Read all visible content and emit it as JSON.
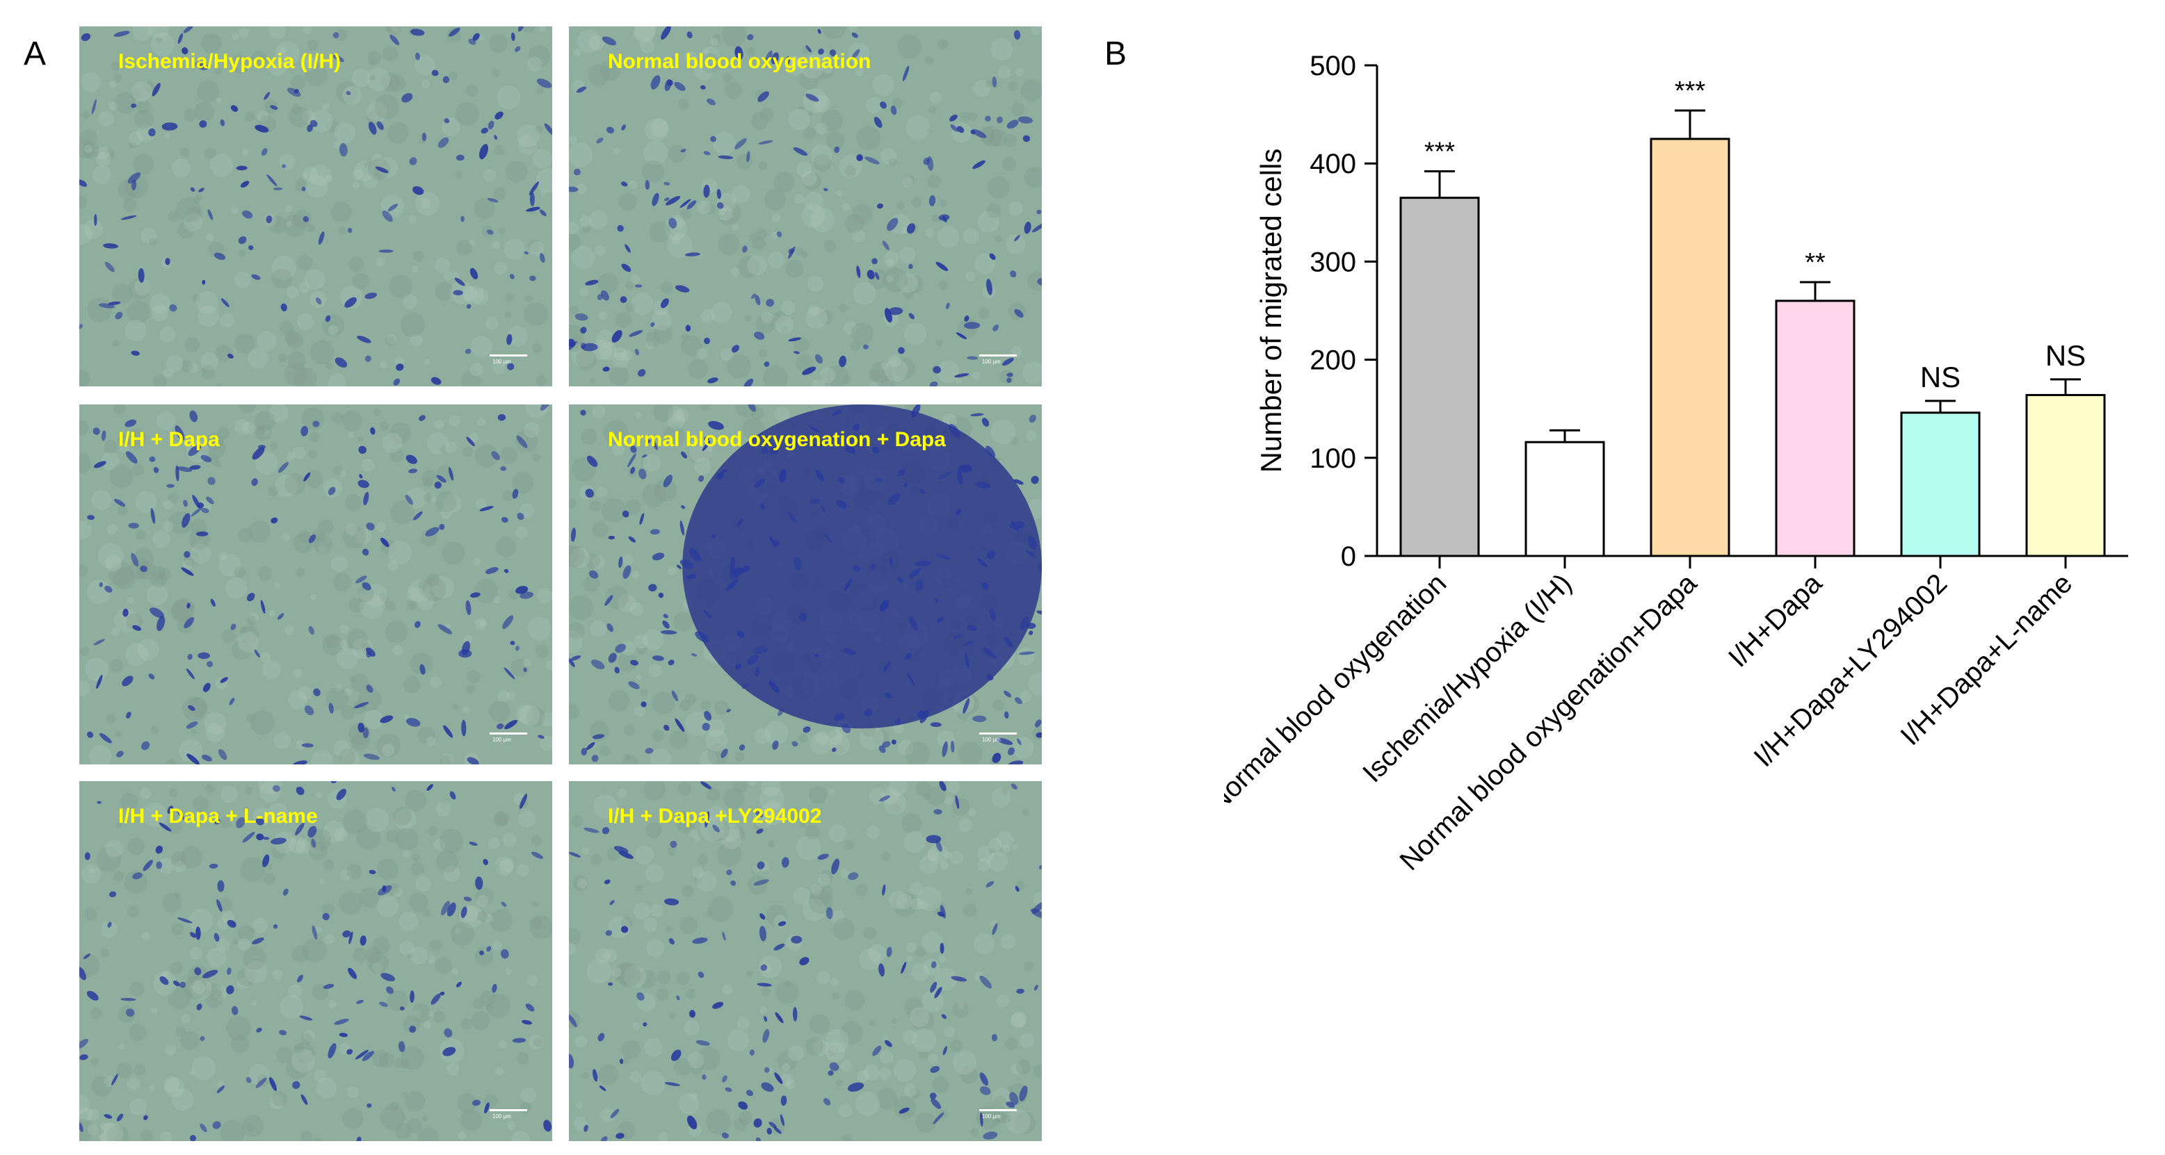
{
  "panels": {
    "a_letter": "A",
    "b_letter": "B"
  },
  "micrographs": [
    {
      "label": "Ischemia/Hypoxia (I/H)",
      "scale": "100 μm",
      "density": 0.28,
      "dark_center": false
    },
    {
      "label": "Normal blood oxygenation",
      "scale": "100 μm",
      "density": 0.42,
      "dark_center": false
    },
    {
      "label": "I/H + Dapa",
      "scale": "100 μm",
      "density": 0.38,
      "dark_center": false
    },
    {
      "label": "Normal blood oxygenation + Dapa",
      "scale": "100 μm",
      "density": 0.62,
      "dark_center": true
    },
    {
      "label": "I/H + Dapa + L-name",
      "scale": "100 μm",
      "density": 0.3,
      "dark_center": false
    },
    {
      "label": "I/H + Dapa +LY294002",
      "scale": "100 μm",
      "density": 0.3,
      "dark_center": false
    }
  ],
  "colors": {
    "micro_background": "#8fae9e",
    "micro_stain": "#2a3a9c",
    "label_yellow": "#ffff00"
  },
  "chart_data": {
    "type": "bar",
    "title": "",
    "xlabel": "",
    "ylabel": "Number of migrated cells",
    "ylim": [
      0,
      500
    ],
    "yticks": [
      0,
      100,
      200,
      300,
      400,
      500
    ],
    "grid": false,
    "categories": [
      "Normal blood oxygenation",
      "Ischemia/Hypoxia (I/H)",
      "Normal blood oxygenation+Dapa",
      "I/H+Dapa",
      "I/H+Dapa+LY294002",
      "I/H+Dapa+L-name"
    ],
    "values": [
      365,
      116,
      425,
      260,
      146,
      164
    ],
    "errors": [
      27,
      12,
      29,
      19,
      12,
      16
    ],
    "significance": [
      "***",
      "",
      "***",
      "**",
      "NS",
      "NS"
    ],
    "bar_colors": [
      "#c0c0c0",
      "#ffffff",
      "#ffdba8",
      "#ffd6ea",
      "#b6fff0",
      "#ffffcc"
    ]
  }
}
